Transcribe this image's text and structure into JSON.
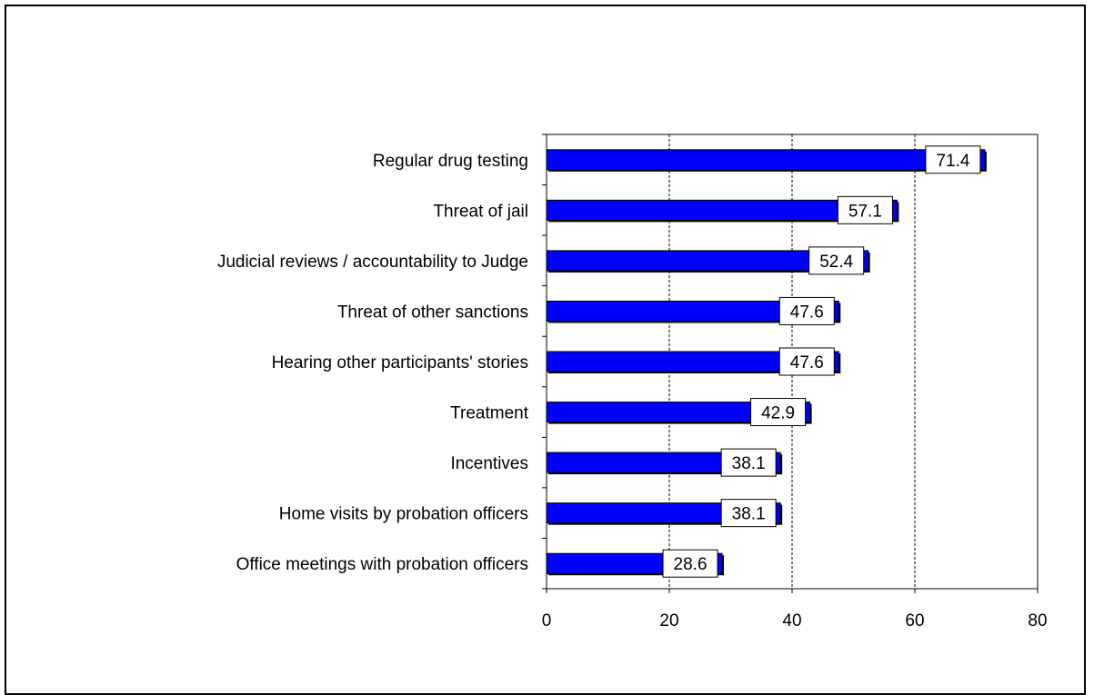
{
  "chart_data": {
    "type": "bar",
    "orientation": "horizontal",
    "title": "",
    "xlabel": "",
    "ylabel": "",
    "categories": [
      "Regular drug testing",
      "Threat of jail",
      "Judicial reviews / accountability to Judge",
      "Threat of other sanctions",
      "Hearing other participants' stories",
      "Treatment",
      "Incentives",
      "Home visits by probation officers",
      "Office meetings with probation officers"
    ],
    "values": [
      71.4,
      57.1,
      52.4,
      47.6,
      47.6,
      42.9,
      38.1,
      38.1,
      28.6
    ],
    "data_labels": [
      "71.4",
      "57.1",
      "52.4",
      "47.6",
      "47.6",
      "42.9",
      "38.1",
      "38.1",
      "28.6"
    ],
    "xlim": [
      0,
      80
    ],
    "xticks": [
      0,
      20,
      40,
      60,
      80
    ],
    "xtick_labels": [
      "0",
      "20",
      "40",
      "60",
      "80"
    ],
    "grid": "vertical dashed at 20, 40, 60",
    "legend": "none",
    "colors": {
      "bar": "#0000ff",
      "bar_shadow": "#000000",
      "grid": "#000000"
    }
  }
}
